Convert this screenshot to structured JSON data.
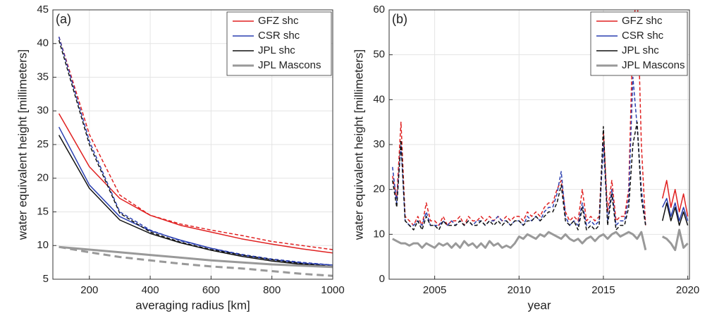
{
  "chart_data": [
    {
      "type": "line",
      "panel_label": "(a)",
      "x_label": "averaging radius [km]",
      "y_label": "water equivalent height [millimeters]",
      "x": [
        100,
        200,
        300,
        400,
        500,
        600,
        700,
        800,
        900,
        1000
      ],
      "xlim": [
        80,
        1000
      ],
      "xticks": [
        200,
        400,
        600,
        800,
        1000
      ],
      "ylim": [
        5,
        45
      ],
      "yticks": [
        5,
        10,
        15,
        20,
        25,
        30,
        35,
        40,
        45
      ],
      "grid": true,
      "legend": "upper right",
      "series": [
        {
          "name": "GFZ shc",
          "color": "#e02020",
          "width": 1.5,
          "values": [
            29.6,
            21.7,
            17,
            14.5,
            13,
            12,
            11,
            10.2,
            9.5,
            8.9
          ],
          "values_dashed": [
            41,
            26.5,
            17.5,
            14.5,
            13.2,
            12.3,
            11.5,
            10.6,
            10,
            9.4
          ]
        },
        {
          "name": "CSR shc",
          "color": "#2a3fb0",
          "width": 1.5,
          "values": [
            27.6,
            19,
            14.3,
            12.2,
            10.8,
            9.6,
            8.6,
            7.9,
            7.4,
            7.1
          ],
          "values_dashed": [
            41,
            25.5,
            15,
            12.3,
            10.7,
            9.6,
            8.7,
            8,
            7.5,
            7.1
          ]
        },
        {
          "name": "JPL shc",
          "color": "#111111",
          "width": 1.5,
          "values": [
            26.4,
            18.5,
            13.8,
            11.8,
            10.4,
            9.3,
            8.4,
            7.7,
            7.2,
            6.9
          ],
          "values_dashed": [
            40.5,
            25,
            14.8,
            12,
            10.5,
            9.4,
            8.6,
            7.9,
            7.3,
            6.9
          ]
        },
        {
          "name": "JPL Mascons",
          "color": "#999999",
          "width": 3,
          "values": [
            9.8,
            9.4,
            9.0,
            8.6,
            8.2,
            7.8,
            7.5,
            7.2,
            7.0,
            6.8
          ],
          "values_dashed": [
            9.8,
            9,
            8.3,
            7.8,
            7.3,
            6.9,
            6.6,
            6.2,
            5.8,
            5.5
          ]
        }
      ]
    },
    {
      "type": "line",
      "panel_label": "(b)",
      "x_label": "year",
      "y_label": "water equivalent height [millimeters]",
      "x": [
        2002.5,
        2002.75,
        2003,
        2003.25,
        2003.5,
        2003.75,
        2004,
        2004.25,
        2004.5,
        2004.75,
        2005,
        2005.25,
        2005.5,
        2005.75,
        2006,
        2006.25,
        2006.5,
        2006.75,
        2007,
        2007.25,
        2007.5,
        2007.75,
        2008,
        2008.25,
        2008.5,
        2008.75,
        2009,
        2009.25,
        2009.5,
        2009.75,
        2010,
        2010.25,
        2010.5,
        2010.75,
        2011,
        2011.25,
        2011.5,
        2011.75,
        2012,
        2012.25,
        2012.5,
        2012.75,
        2013,
        2013.25,
        2013.5,
        2013.75,
        2014,
        2014.25,
        2014.5,
        2014.75,
        2015,
        2015.25,
        2015.5,
        2015.75,
        2016,
        2016.25,
        2016.5,
        2016.75,
        2017,
        2017.25,
        2017.5,
        2018,
        2018.5,
        2018.75,
        2019,
        2019.25,
        2019.5,
        2019.75,
        2020
      ],
      "xlim": [
        2002.3,
        2020.1
      ],
      "xticks": [
        2005,
        2010,
        2015,
        2020
      ],
      "ylim": [
        0,
        60
      ],
      "yticks": [
        0,
        10,
        20,
        30,
        40,
        50,
        60
      ],
      "grid": true,
      "legend": "upper right",
      "series": [
        {
          "name": "GFZ shc",
          "color": "#e02020",
          "width": 1.5,
          "piece_styles": [
            "dashed",
            "solid"
          ],
          "values": [
            23,
            18,
            35,
            14,
            13,
            12,
            14,
            12,
            17,
            13,
            13,
            12,
            14,
            12,
            13,
            13,
            14,
            12,
            14,
            13,
            13,
            14,
            13,
            14,
            13,
            14,
            13,
            14,
            13,
            14,
            14,
            13,
            15,
            14,
            15,
            14,
            16,
            17,
            17,
            20,
            22,
            15,
            13,
            14,
            13,
            20,
            13,
            14,
            13,
            14,
            33,
            15,
            22,
            13,
            14,
            14,
            20,
            55,
            65,
            30,
            12,
            null,
            18,
            22,
            16,
            20,
            15,
            19,
            14
          ]
        },
        {
          "name": "CSR shc",
          "color": "#2a3fb0",
          "width": 1.5,
          "piece_styles": [
            "dashed",
            "solid"
          ],
          "values": [
            25,
            17,
            30,
            13,
            12,
            12,
            13,
            12,
            15,
            12,
            12,
            12,
            13,
            12,
            13,
            12,
            13,
            12,
            13,
            12,
            13,
            13,
            12,
            13,
            13,
            14,
            13,
            13,
            12,
            13,
            13,
            12,
            14,
            13,
            14,
            13,
            15,
            16,
            16,
            19,
            24,
            14,
            12,
            13,
            12,
            17,
            12,
            13,
            12,
            13,
            30,
            13,
            20,
            12,
            13,
            13,
            18,
            45,
            34,
            20,
            12,
            null,
            16,
            18,
            14,
            17,
            13,
            16,
            13
          ]
        },
        {
          "name": "JPL shc",
          "color": "#111111",
          "width": 1.5,
          "piece_styles": [
            "dashed",
            "solid"
          ],
          "values": [
            22,
            16,
            31,
            13,
            12,
            11,
            13,
            11,
            14,
            12,
            12,
            11,
            13,
            12,
            12,
            12,
            13,
            12,
            13,
            12,
            12,
            13,
            12,
            13,
            12,
            13,
            12,
            13,
            12,
            13,
            13,
            12,
            13,
            13,
            14,
            13,
            14,
            15,
            15,
            17,
            21,
            13,
            12,
            13,
            11,
            16,
            11,
            12,
            11,
            12,
            34,
            12,
            19,
            11,
            12,
            12,
            16,
            30,
            35,
            18,
            12,
            null,
            13,
            17,
            13,
            16,
            12,
            15,
            12
          ]
        },
        {
          "name": "JPL Mascons",
          "color": "#999999",
          "width": 3,
          "piece_styles": [
            "solid",
            "solid"
          ],
          "values": [
            9,
            8.5,
            8,
            8,
            7.5,
            8,
            8,
            7,
            8,
            7.5,
            7,
            8,
            7.5,
            8,
            7,
            8,
            7,
            8.5,
            7.5,
            8,
            7,
            8,
            7,
            8.5,
            7.5,
            8,
            7,
            7.5,
            7,
            8,
            9.5,
            9,
            10,
            9.5,
            9,
            10,
            9.5,
            10.5,
            10,
            9.5,
            9,
            10,
            9,
            8.5,
            9,
            8,
            9,
            9.5,
            8.5,
            9.5,
            10,
            9,
            10,
            10.5,
            9.5,
            10,
            10.5,
            10,
            9,
            10.5,
            6.5,
            null,
            9.5,
            9,
            8,
            6.5,
            11,
            7,
            8
          ]
        }
      ]
    }
  ]
}
